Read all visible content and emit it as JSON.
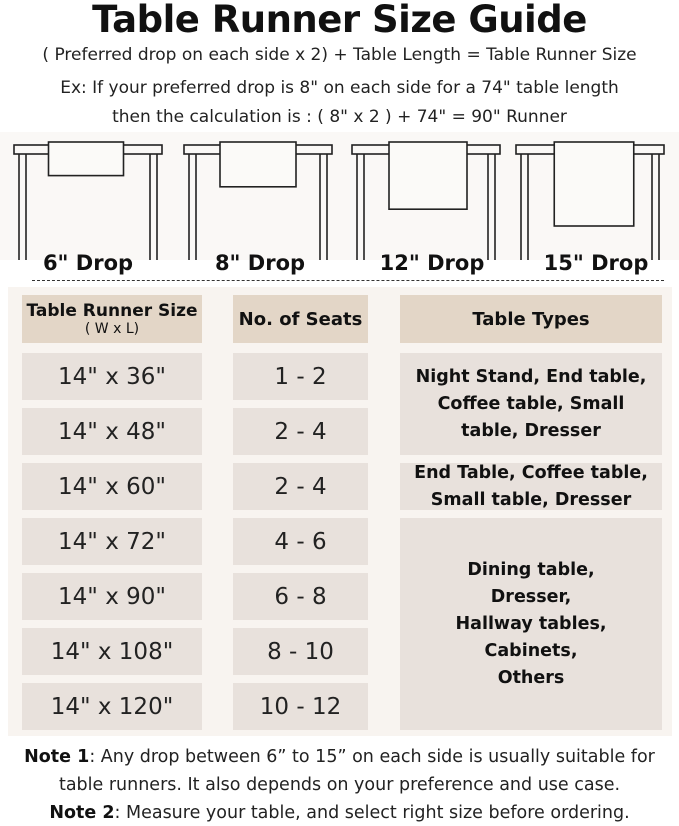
{
  "title": "Table Runner Size Guide",
  "formula": "( Preferred drop on each side x 2) + Table Length = Table Runner Size",
  "example_line1": "Ex: If your preferred drop is 8\" on each side for a 74\" table length",
  "example_line2": "then the calculation is : ( 8\" x 2 ) + 74\" = 90\" Runner",
  "drops": [
    {
      "label": "6\" Drop",
      "drop_in": 6
    },
    {
      "label": "8\" Drop",
      "drop_in": 8
    },
    {
      "label": "12\" Drop",
      "drop_in": 12
    },
    {
      "label": "15\" Drop",
      "drop_in": 15
    }
  ],
  "table": {
    "headers": {
      "size": "Table Runner Size",
      "size_sub": "( W x L)",
      "seats": "No. of Seats",
      "types": "Table Types"
    },
    "rows": [
      {
        "size": "14\" x 36\"",
        "seats": "1 - 2"
      },
      {
        "size": "14\" x 48\"",
        "seats": "2 - 4"
      },
      {
        "size": "14\" x 60\"",
        "seats": "2 - 4"
      },
      {
        "size": "14\" x 72\"",
        "seats": "4 - 6"
      },
      {
        "size": "14\" x 90\"",
        "seats": "6 - 8"
      },
      {
        "size": "14\" x 108\"",
        "seats": "8 - 10"
      },
      {
        "size": "14\" x 120\"",
        "seats": "10 - 12"
      }
    ],
    "types": [
      "Night Stand, End table, Coffee table, Small table, Dresser",
      "End Table, Coffee table, Small table, Dresser",
      "Dining table, Dresser, Hallway tables, Cabinets, Others"
    ]
  },
  "notes": {
    "note1_label": "Note 1",
    "note1_line1": ": Any drop between 6” to 15” on each side is usually suitable for",
    "note1_line2": "table runners. It also depends on your preference and use case.",
    "note2_label": "Note 2",
    "note2_text": ": Measure your table, and select right size before ordering."
  },
  "colors": {
    "header_cell": "#e3d6c7",
    "body_cell": "#e8e1dc",
    "panel": "#f8f4f0"
  }
}
